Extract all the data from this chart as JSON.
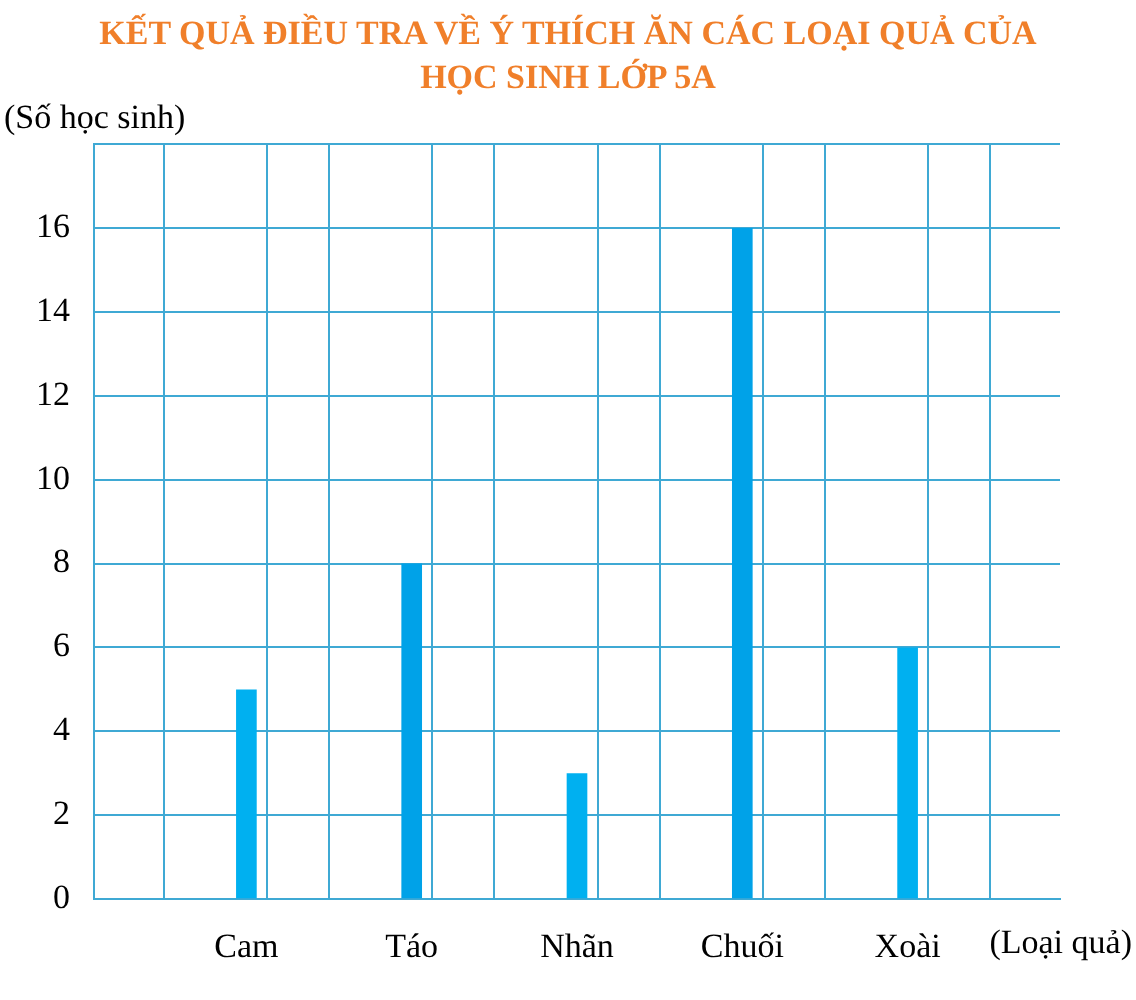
{
  "chart_data": {
    "type": "bar",
    "title": "KẾT QUẢ ĐIỀU TRA VỀ Ý THÍCH ĂN CÁC LOẠI QUẢ CỦA HỌC SINH LỚP 5A",
    "xlabel": "(Loại quả)",
    "ylabel": "(Số học sinh)",
    "categories": [
      "Cam",
      "Táo",
      "Nhãn",
      "Chuối",
      "Xoài"
    ],
    "values": [
      5,
      8,
      3,
      16,
      6
    ],
    "colors": [
      "#00b0f0",
      "#00a2e8",
      "#00b0f0",
      "#00a2e8",
      "#00b0f0"
    ],
    "ylim": [
      0,
      18
    ],
    "yticks": [
      0,
      2,
      4,
      6,
      8,
      10,
      12,
      14,
      16,
      {
        "value": 18,
        "label": null
      }
    ],
    "grid": true,
    "legend": false
  }
}
